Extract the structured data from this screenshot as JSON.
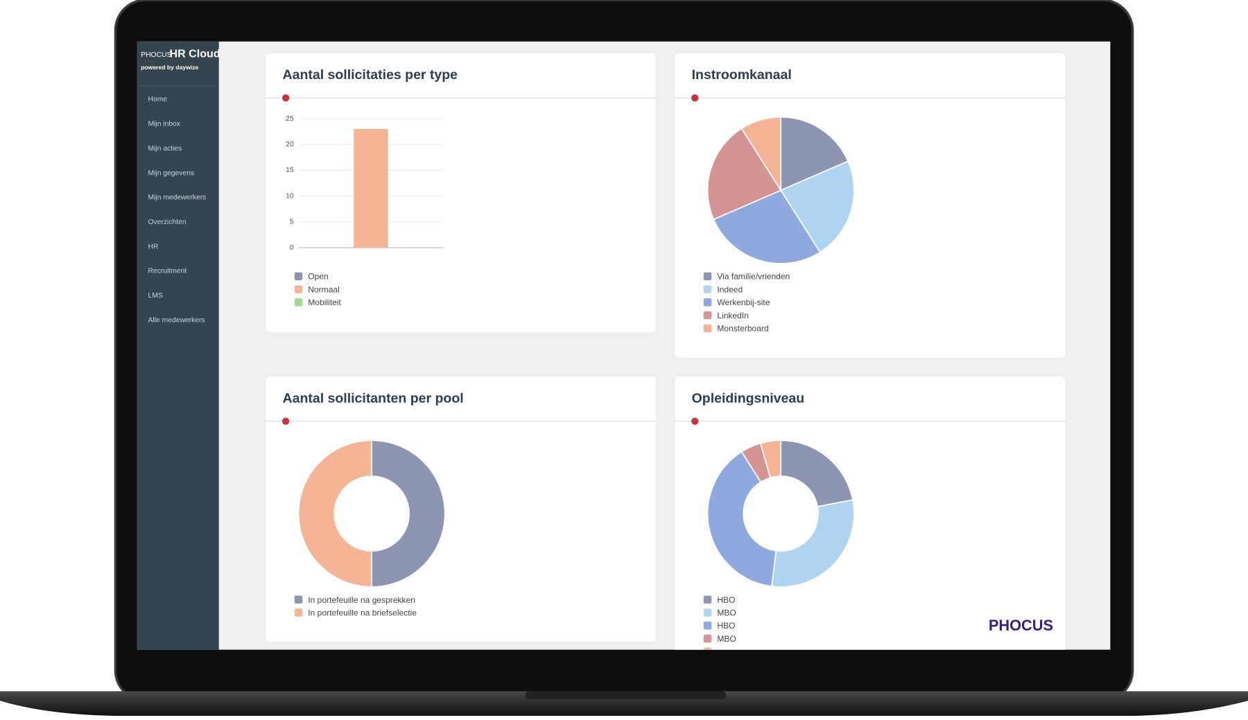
{
  "sidebar": {
    "brand_small": "PHOCUS",
    "brand": "HR Cloud",
    "tagline": "powered by daywize",
    "nav": [
      "Home",
      "Mijn inbox",
      "Mijn acties",
      "Mijn gegevens",
      "Mijn medewerkers",
      "Overzichten",
      "HR",
      "Recruitment",
      "LMS",
      "Alle medewerkers"
    ]
  },
  "logo": "PHOCUS",
  "chart_data": [
    {
      "type": "bar",
      "title": "Aantal sollicitaties per type",
      "categories": [
        null
      ],
      "series": [
        {
          "name": "Open",
          "color": "#8e95b2",
          "values": [
            0
          ]
        },
        {
          "name": "Normaal",
          "color": "#f5b495",
          "values": [
            23
          ]
        },
        {
          "name": "Mobiliteit",
          "color": "#9ed89a",
          "values": [
            0
          ]
        }
      ],
      "ylim": [
        0,
        25
      ],
      "yticks": [
        0,
        5,
        10,
        15,
        20,
        25
      ],
      "grid": true
    },
    {
      "type": "pie",
      "title": "Instroomkanaal",
      "categories": [
        "Via familie/vrienden",
        "Indeed",
        "Werkenbij-site",
        "LinkedIn",
        "Monsterboard"
      ],
      "values": [
        18.5,
        22.5,
        27.5,
        22.5,
        9
      ],
      "colors": [
        "#8e95b2",
        "#aed4f1",
        "#8fa8dd",
        "#d49494",
        "#f5b495"
      ]
    },
    {
      "type": "doughnut",
      "title": "Aantal sollicitanten per pool",
      "categories": [
        "In portefeuille na gesprekken",
        "In portefeuille na briefselectie"
      ],
      "values": [
        50,
        50
      ],
      "colors": [
        "#8e95b2",
        "#f5b495"
      ]
    },
    {
      "type": "doughnut",
      "title": "Opleidingsniveau",
      "categories": [
        "HBO",
        "MBO",
        "HBO",
        "MBO",
        null
      ],
      "values": [
        22,
        30,
        39,
        4.5,
        4.5
      ],
      "colors": [
        "#8e95b2",
        "#aed4f1",
        "#8fa8dd",
        "#d49494",
        "#f5b495"
      ]
    }
  ]
}
